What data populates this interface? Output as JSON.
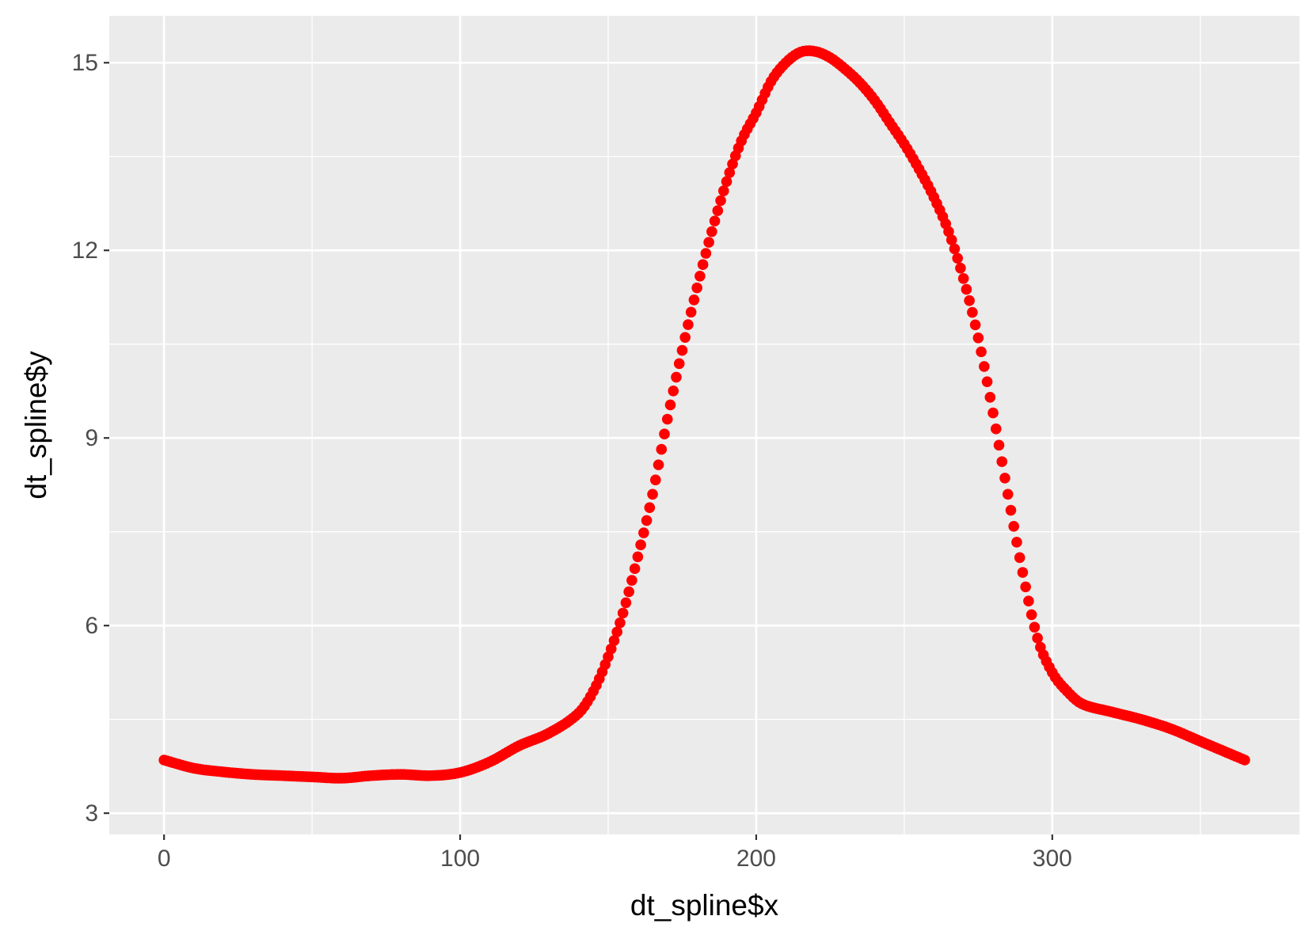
{
  "chart_data": {
    "type": "scatter",
    "title": "",
    "xlabel": "dt_spline$x",
    "ylabel": "dt_spline$y",
    "xlim": [
      -18.5,
      383.5
    ],
    "ylim": [
      2.66,
      15.75
    ],
    "x_ticks": [
      0,
      100,
      200,
      300
    ],
    "x_tick_labels": [
      "0",
      "100",
      "200",
      "300"
    ],
    "x_minor_ticks": [
      50,
      150,
      250,
      350
    ],
    "y_ticks": [
      3,
      6,
      9,
      12,
      15
    ],
    "y_tick_labels": [
      "3",
      "6",
      "9",
      "12",
      "15"
    ],
    "y_minor_ticks": [
      4.5,
      7.5,
      10.5,
      13.5
    ],
    "grid": true,
    "panel_background": "#ebebeb",
    "grid_color": "#ffffff",
    "point_color": "#ff0000",
    "x_range": [
      0,
      365
    ],
    "point_count": 366,
    "curve_knots": {
      "x": [
        0,
        10,
        20,
        30,
        40,
        50,
        60,
        70,
        80,
        90,
        100,
        110,
        120,
        130,
        140,
        145,
        150,
        155,
        160,
        165,
        170,
        175,
        180,
        185,
        190,
        195,
        200,
        205,
        210,
        215,
        220,
        225,
        230,
        235,
        240,
        245,
        250,
        255,
        260,
        265,
        270,
        275,
        280,
        285,
        290,
        295,
        300,
        305,
        310,
        320,
        330,
        340,
        350,
        360,
        365
      ],
      "y": [
        3.85,
        3.72,
        3.66,
        3.62,
        3.6,
        3.58,
        3.56,
        3.6,
        3.62,
        3.6,
        3.65,
        3.82,
        4.08,
        4.28,
        4.6,
        4.95,
        5.5,
        6.2,
        7.1,
        8.1,
        9.3,
        10.4,
        11.4,
        12.3,
        13.1,
        13.75,
        14.2,
        14.7,
        15.0,
        15.17,
        15.18,
        15.08,
        14.9,
        14.68,
        14.4,
        14.05,
        13.7,
        13.3,
        12.85,
        12.3,
        11.55,
        10.6,
        9.4,
        8.1,
        6.85,
        5.8,
        5.25,
        4.95,
        4.75,
        4.62,
        4.5,
        4.35,
        4.15,
        3.95,
        3.85
      ]
    }
  }
}
